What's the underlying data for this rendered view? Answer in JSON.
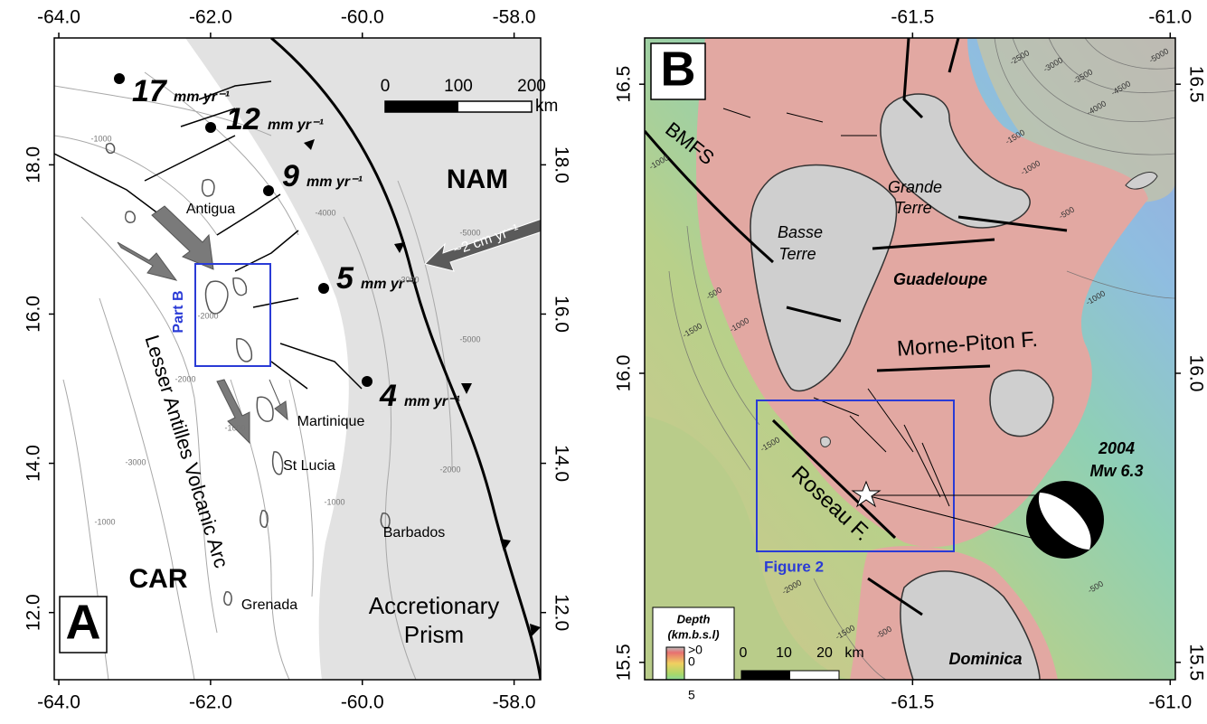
{
  "panel_a": {
    "letter": "A",
    "xlim": [
      -64.06,
      -57.65
    ],
    "ylim": [
      11.1,
      19.7
    ],
    "lon_ticks": [
      {
        "value": -64,
        "label": "-64.0"
      },
      {
        "value": -62,
        "label": "-62.0"
      },
      {
        "value": -60,
        "label": "-60.0"
      },
      {
        "value": -58,
        "label": "-58.0"
      }
    ],
    "lat_ticks": [
      {
        "value": 18,
        "label": "18.0"
      },
      {
        "value": 16,
        "label": "16.0"
      },
      {
        "value": 14,
        "label": "14.0"
      },
      {
        "value": 12,
        "label": "12.0"
      }
    ],
    "scale_bar": {
      "ticks": [
        0,
        100,
        200
      ],
      "unit": "km"
    },
    "plates": [
      "NAM",
      "CAR"
    ],
    "islands": [
      "Antigua",
      "Martinique",
      "St Lucia",
      "Barbados",
      "Grenada"
    ],
    "arc": "Lesser Antilles Volcanic Arc",
    "prism": [
      "Accretionary",
      "Prism"
    ],
    "box_label": "Part B",
    "convergence": "~2 cm yr⁻¹",
    "gps": [
      {
        "rate": 17,
        "unit": "mm yr⁻¹"
      },
      {
        "rate": 12,
        "unit": "mm yr⁻¹"
      },
      {
        "rate": 9,
        "unit": "mm yr⁻¹"
      },
      {
        "rate": 5,
        "unit": "mm yr⁻¹"
      },
      {
        "rate": 4,
        "unit": "mm yr⁻¹"
      }
    ],
    "contour_labels": [
      "-1000",
      "-2000",
      "-3000",
      "-4000",
      "-5000",
      "-2000",
      "-1000",
      "-3000",
      "-2000",
      "-1000",
      "-1000",
      "-5000"
    ]
  },
  "panel_b": {
    "letter": "B",
    "xlim": [
      -62.02,
      -60.99
    ],
    "ylim": [
      15.47,
      16.58
    ],
    "lon_ticks": [
      {
        "value": -61.5,
        "label": "-61.5"
      },
      {
        "value": -61,
        "label": "-61.0"
      }
    ],
    "lat_ticks": [
      {
        "value": 16.5,
        "label": "16.5"
      },
      {
        "value": 16,
        "label": "16.0"
      },
      {
        "value": 15.5,
        "label": "15.5"
      }
    ],
    "scale_bar": {
      "ticks": [
        0,
        10,
        20
      ],
      "unit": "km"
    },
    "faults": [
      "BMFS",
      "Morne-Piton F.",
      "Roseau F."
    ],
    "basse_terre": [
      "Basse",
      "Terre"
    ],
    "grande_terre": [
      "Grande",
      "Terre"
    ],
    "islands": [
      "Guadeloupe",
      "Dominica"
    ],
    "event": [
      "2004",
      "Mw 6.3"
    ],
    "box_label": "Figure 2",
    "legend": {
      "title": "Depth",
      "unit": "(km.b.s.l)",
      "labels": [
        ">0",
        "0",
        "5"
      ]
    },
    "contour_labels": [
      "-5000",
      "-4500",
      "-4000",
      "-3500",
      "-3000",
      "-2500",
      "-1500",
      "-1000",
      "-500",
      "-1000",
      "-500",
      "-1000",
      "-1500",
      "-1000",
      "-1500",
      "-2000",
      "-500",
      "-1500",
      "-500"
    ]
  }
}
